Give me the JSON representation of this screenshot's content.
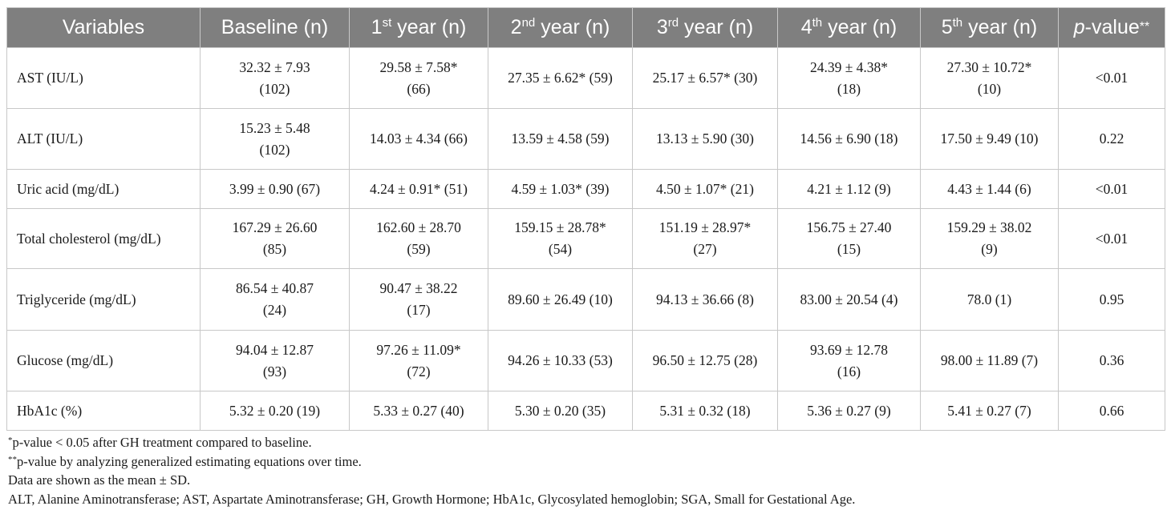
{
  "header": {
    "variables": "Variables",
    "baseline": "Baseline (n)",
    "y1": {
      "num": "1",
      "sup": "st",
      "rest": " year (n)"
    },
    "y2": {
      "num": "2",
      "sup": "nd",
      "rest": " year (n)"
    },
    "y3": {
      "num": "3",
      "sup": "rd",
      "rest": " year (n)"
    },
    "y4": {
      "num": "4",
      "sup": "th",
      "rest": " year (n)"
    },
    "y5": {
      "num": "5",
      "sup": "th",
      "rest": " year (n)"
    },
    "pvalue": {
      "p": "p",
      "rest": "-value",
      "stars": "**"
    }
  },
  "rows": [
    {
      "variable": "AST (IU/L)",
      "cells": [
        [
          "32.32 ± 7.93",
          "(102)"
        ],
        [
          "29.58 ± 7.58*",
          "(66)"
        ],
        [
          "27.35 ± 6.62* (59)"
        ],
        [
          "25.17 ± 6.57* (30)"
        ],
        [
          "24.39 ± 4.38*",
          "(18)"
        ],
        [
          "27.30 ± 10.72*",
          "(10)"
        ]
      ],
      "p": "<0.01"
    },
    {
      "variable": "ALT (IU/L)",
      "cells": [
        [
          "15.23 ± 5.48",
          "(102)"
        ],
        [
          "14.03 ± 4.34 (66)"
        ],
        [
          "13.59 ± 4.58 (59)"
        ],
        [
          "13.13 ± 5.90 (30)"
        ],
        [
          "14.56 ± 6.90 (18)"
        ],
        [
          "17.50 ± 9.49 (10)"
        ]
      ],
      "p": "0.22"
    },
    {
      "variable": "Uric acid (mg/dL)",
      "cells": [
        [
          "3.99 ± 0.90 (67)"
        ],
        [
          "4.24 ± 0.91* (51)"
        ],
        [
          "4.59 ± 1.03* (39)"
        ],
        [
          "4.50 ± 1.07* (21)"
        ],
        [
          "4.21 ± 1.12 (9)"
        ],
        [
          "4.43 ± 1.44 (6)"
        ]
      ],
      "p": "<0.01"
    },
    {
      "variable": "Total cholesterol (mg/dL)",
      "cells": [
        [
          "167.29 ± 26.60",
          "(85)"
        ],
        [
          "162.60 ± 28.70",
          "(59)"
        ],
        [
          "159.15 ± 28.78*",
          "(54)"
        ],
        [
          "151.19 ± 28.97*",
          "(27)"
        ],
        [
          "156.75 ± 27.40",
          "(15)"
        ],
        [
          "159.29 ± 38.02",
          "(9)"
        ]
      ],
      "p": "<0.01"
    },
    {
      "variable": "Triglyceride (mg/dL)",
      "cells": [
        [
          "86.54 ± 40.87",
          "(24)"
        ],
        [
          "90.47 ± 38.22",
          "(17)"
        ],
        [
          "89.60 ± 26.49 (10)"
        ],
        [
          "94.13 ± 36.66 (8)"
        ],
        [
          "83.00 ± 20.54 (4)"
        ],
        [
          "78.0 (1)"
        ]
      ],
      "p": "0.95"
    },
    {
      "variable": "Glucose (mg/dL)",
      "cells": [
        [
          "94.04 ± 12.87",
          "(93)"
        ],
        [
          "97.26 ± 11.09*",
          "(72)"
        ],
        [
          "94.26 ± 10.33 (53)"
        ],
        [
          "96.50 ± 12.75 (28)"
        ],
        [
          "93.69 ± 12.78",
          "(16)"
        ],
        [
          "98.00 ± 11.89 (7)"
        ]
      ],
      "p": "0.36"
    },
    {
      "variable": "HbA1c (%)",
      "cells": [
        [
          "5.32 ± 0.20 (19)"
        ],
        [
          "5.33 ± 0.27 (40)"
        ],
        [
          "5.30 ± 0.20 (35)"
        ],
        [
          "5.31 ± 0.32 (18)"
        ],
        [
          "5.36 ± 0.27 (9)"
        ],
        [
          "5.41 ± 0.27 (7)"
        ]
      ],
      "p": "0.66"
    }
  ],
  "notes": {
    "n1_sup": "*",
    "n1": "p-value < 0.05 after GH treatment compared to baseline.",
    "n2_sup": "**",
    "n2": "p-value by analyzing generalized estimating equations over time.",
    "n3": "Data are shown as the mean ± SD.",
    "n4": "ALT, Alanine Aminotransferase; AST, Aspartate Aminotransferase; GH, Growth Hormone; HbA1c, Glycosylated hemoglobin; SGA, Small for Gestational Age."
  },
  "colors": {
    "header_bg": "#7f7f7f",
    "header_text": "#ffffff",
    "border": "#c8c8c8",
    "text": "#1a1a1a"
  }
}
